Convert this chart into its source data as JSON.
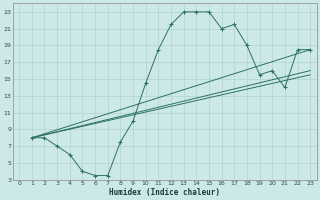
{
  "xlabel": "Humidex (Indice chaleur)",
  "bg_color": "#cce9e7",
  "line_color": "#2d7068",
  "grid_color": "#b0d4d0",
  "xlim": [
    -0.5,
    23.5
  ],
  "ylim": [
    3,
    24
  ],
  "xticks": [
    0,
    1,
    2,
    3,
    4,
    5,
    6,
    7,
    8,
    9,
    10,
    11,
    12,
    13,
    14,
    15,
    16,
    17,
    18,
    19,
    20,
    21,
    22,
    23
  ],
  "yticks": [
    3,
    5,
    7,
    9,
    11,
    13,
    15,
    17,
    19,
    21,
    23
  ],
  "curve_x": [
    1,
    2,
    3,
    4,
    5,
    6,
    7,
    8,
    9,
    10,
    11,
    12,
    13,
    14,
    15,
    16,
    17,
    18,
    19,
    20,
    21,
    22,
    23
  ],
  "curve_y": [
    8,
    8,
    7,
    6,
    4,
    3.5,
    3.5,
    7.5,
    10,
    14.5,
    18.5,
    21.5,
    23,
    23,
    23,
    21,
    21.5,
    19,
    15.5,
    16,
    14,
    18.5,
    18.5
  ],
  "line1_x": [
    1,
    23
  ],
  "line1_y": [
    8,
    18.5
  ],
  "line2_x": [
    1,
    23
  ],
  "line2_y": [
    8,
    16
  ],
  "line3_x": [
    1,
    23
  ],
  "line3_y": [
    8,
    15.5
  ]
}
